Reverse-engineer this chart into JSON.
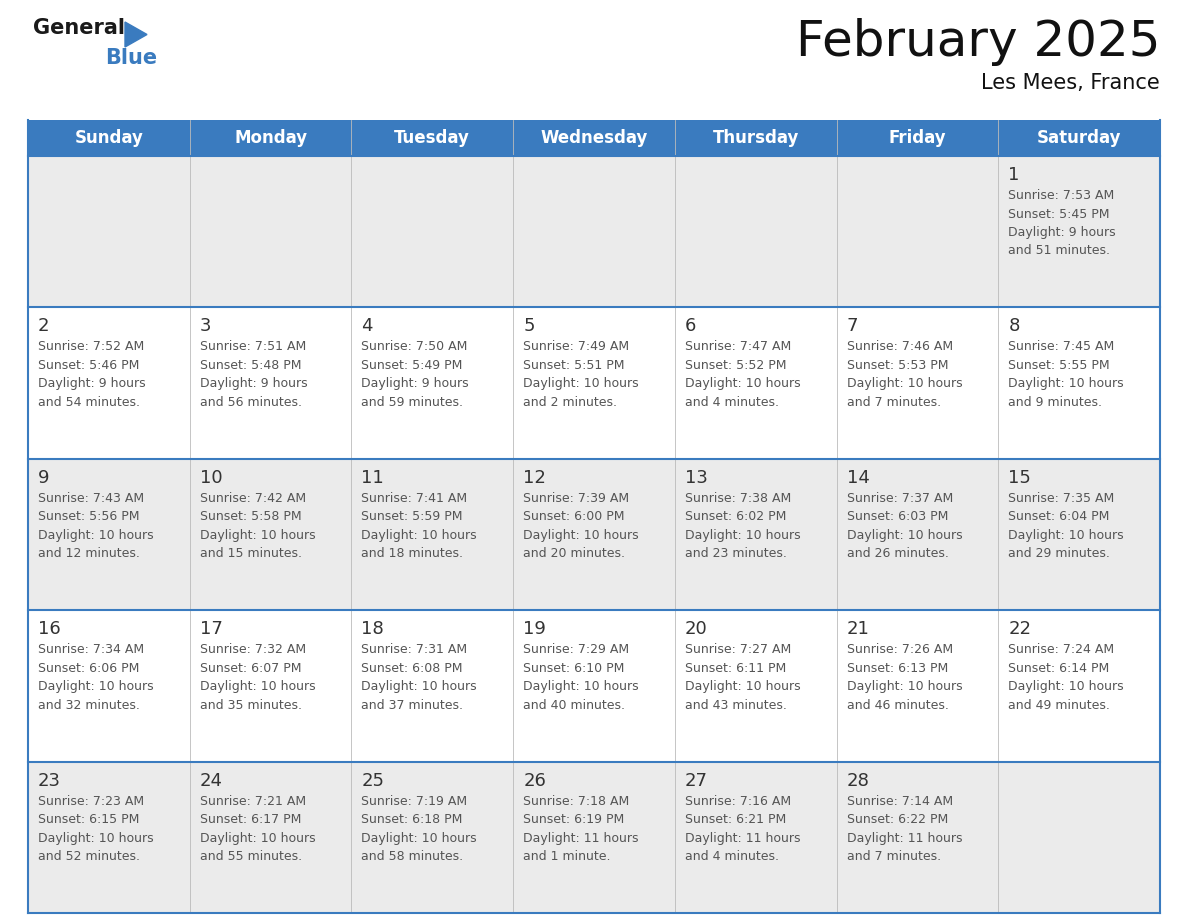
{
  "title": "February 2025",
  "subtitle": "Les Mees, France",
  "header_bg_color": "#3a7bbf",
  "header_text_color": "#ffffff",
  "day_names": [
    "Sunday",
    "Monday",
    "Tuesday",
    "Wednesday",
    "Thursday",
    "Friday",
    "Saturday"
  ],
  "row_bg_colors": [
    "#ebebeb",
    "#ffffff",
    "#ebebeb",
    "#ffffff",
    "#ebebeb"
  ],
  "border_color": "#3a7bbf",
  "text_color": "#555555",
  "num_color": "#333333",
  "calendar": [
    [
      null,
      null,
      null,
      null,
      null,
      null,
      {
        "day": 1,
        "sunrise": "7:53 AM",
        "sunset": "5:45 PM",
        "daylight": "9 hours\nand 51 minutes."
      }
    ],
    [
      {
        "day": 2,
        "sunrise": "7:52 AM",
        "sunset": "5:46 PM",
        "daylight": "9 hours\nand 54 minutes."
      },
      {
        "day": 3,
        "sunrise": "7:51 AM",
        "sunset": "5:48 PM",
        "daylight": "9 hours\nand 56 minutes."
      },
      {
        "day": 4,
        "sunrise": "7:50 AM",
        "sunset": "5:49 PM",
        "daylight": "9 hours\nand 59 minutes."
      },
      {
        "day": 5,
        "sunrise": "7:49 AM",
        "sunset": "5:51 PM",
        "daylight": "10 hours\nand 2 minutes."
      },
      {
        "day": 6,
        "sunrise": "7:47 AM",
        "sunset": "5:52 PM",
        "daylight": "10 hours\nand 4 minutes."
      },
      {
        "day": 7,
        "sunrise": "7:46 AM",
        "sunset": "5:53 PM",
        "daylight": "10 hours\nand 7 minutes."
      },
      {
        "day": 8,
        "sunrise": "7:45 AM",
        "sunset": "5:55 PM",
        "daylight": "10 hours\nand 9 minutes."
      }
    ],
    [
      {
        "day": 9,
        "sunrise": "7:43 AM",
        "sunset": "5:56 PM",
        "daylight": "10 hours\nand 12 minutes."
      },
      {
        "day": 10,
        "sunrise": "7:42 AM",
        "sunset": "5:58 PM",
        "daylight": "10 hours\nand 15 minutes."
      },
      {
        "day": 11,
        "sunrise": "7:41 AM",
        "sunset": "5:59 PM",
        "daylight": "10 hours\nand 18 minutes."
      },
      {
        "day": 12,
        "sunrise": "7:39 AM",
        "sunset": "6:00 PM",
        "daylight": "10 hours\nand 20 minutes."
      },
      {
        "day": 13,
        "sunrise": "7:38 AM",
        "sunset": "6:02 PM",
        "daylight": "10 hours\nand 23 minutes."
      },
      {
        "day": 14,
        "sunrise": "7:37 AM",
        "sunset": "6:03 PM",
        "daylight": "10 hours\nand 26 minutes."
      },
      {
        "day": 15,
        "sunrise": "7:35 AM",
        "sunset": "6:04 PM",
        "daylight": "10 hours\nand 29 minutes."
      }
    ],
    [
      {
        "day": 16,
        "sunrise": "7:34 AM",
        "sunset": "6:06 PM",
        "daylight": "10 hours\nand 32 minutes."
      },
      {
        "day": 17,
        "sunrise": "7:32 AM",
        "sunset": "6:07 PM",
        "daylight": "10 hours\nand 35 minutes."
      },
      {
        "day": 18,
        "sunrise": "7:31 AM",
        "sunset": "6:08 PM",
        "daylight": "10 hours\nand 37 minutes."
      },
      {
        "day": 19,
        "sunrise": "7:29 AM",
        "sunset": "6:10 PM",
        "daylight": "10 hours\nand 40 minutes."
      },
      {
        "day": 20,
        "sunrise": "7:27 AM",
        "sunset": "6:11 PM",
        "daylight": "10 hours\nand 43 minutes."
      },
      {
        "day": 21,
        "sunrise": "7:26 AM",
        "sunset": "6:13 PM",
        "daylight": "10 hours\nand 46 minutes."
      },
      {
        "day": 22,
        "sunrise": "7:24 AM",
        "sunset": "6:14 PM",
        "daylight": "10 hours\nand 49 minutes."
      }
    ],
    [
      {
        "day": 23,
        "sunrise": "7:23 AM",
        "sunset": "6:15 PM",
        "daylight": "10 hours\nand 52 minutes."
      },
      {
        "day": 24,
        "sunrise": "7:21 AM",
        "sunset": "6:17 PM",
        "daylight": "10 hours\nand 55 minutes."
      },
      {
        "day": 25,
        "sunrise": "7:19 AM",
        "sunset": "6:18 PM",
        "daylight": "10 hours\nand 58 minutes."
      },
      {
        "day": 26,
        "sunrise": "7:18 AM",
        "sunset": "6:19 PM",
        "daylight": "11 hours\nand 1 minute."
      },
      {
        "day": 27,
        "sunrise": "7:16 AM",
        "sunset": "6:21 PM",
        "daylight": "11 hours\nand 4 minutes."
      },
      {
        "day": 28,
        "sunrise": "7:14 AM",
        "sunset": "6:22 PM",
        "daylight": "11 hours\nand 7 minutes."
      },
      null
    ]
  ],
  "logo_text_general": "General",
  "logo_text_blue": "Blue",
  "logo_color_general": "#1a1a1a",
  "logo_color_blue": "#3a7bbf",
  "logo_triangle_color": "#3a7bbf",
  "title_fontsize": 36,
  "subtitle_fontsize": 15,
  "header_fontsize": 12,
  "day_num_fontsize": 13,
  "cell_text_fontsize": 9
}
